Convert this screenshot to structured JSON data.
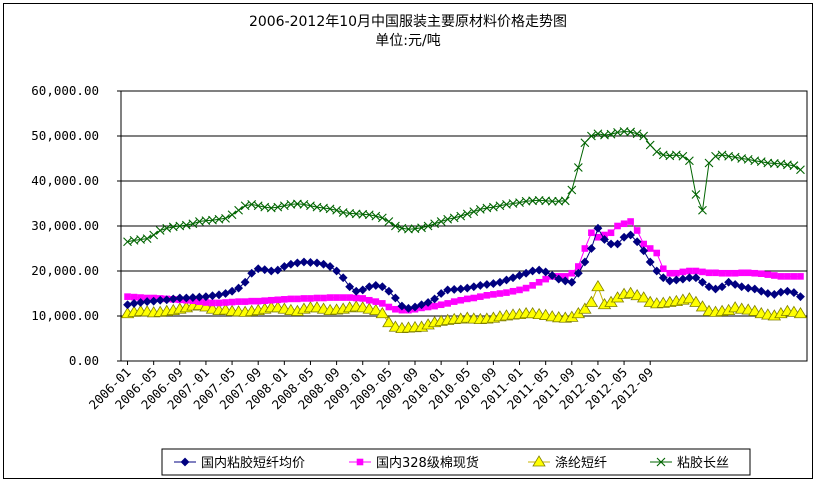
{
  "chart_data": {
    "type": "line",
    "title": "2006-2012年10月中国服装主要原材料价格走势图",
    "subtitle": "单位:元/吨",
    "ylim": [
      0,
      60000
    ],
    "yticks": [
      "0.00",
      "10,000.00",
      "20,000.00",
      "30,000.00",
      "40,000.00",
      "50,000.00",
      "60,000.00"
    ],
    "x_tick_labels": [
      "2006-01",
      "2006-05",
      "2006-09",
      "2007-01",
      "2007-05",
      "2007-09",
      "2008-01",
      "2008-05",
      "2008-09",
      "2009-01",
      "2009-05",
      "2009-09",
      "2010-01",
      "2010-05",
      "2010-09",
      "2011-01",
      "2011-05",
      "2011-09",
      "2012-01",
      "2012-05",
      "2012-09"
    ],
    "x_start": "2006-01",
    "x_end": "2012-10",
    "grid": "horizontal",
    "legend_position": "bottom",
    "series": [
      {
        "name": "国内粘胶短纤均价",
        "color": "#000080",
        "marker": "diamond",
        "values": [
          12500,
          12800,
          13000,
          13200,
          13300,
          13500,
          13600,
          13800,
          14000,
          14000,
          14100,
          14200,
          14300,
          14500,
          14700,
          15000,
          15500,
          16200,
          17500,
          19500,
          20500,
          20300,
          20000,
          20200,
          21000,
          21500,
          21800,
          22000,
          21900,
          21800,
          21500,
          21000,
          20000,
          18500,
          16500,
          15500,
          15800,
          16500,
          16800,
          16500,
          15500,
          14000,
          12200,
          11700,
          12000,
          12500,
          13000,
          13800,
          15000,
          15800,
          15900,
          16000,
          16200,
          16500,
          16800,
          17000,
          17200,
          17500,
          18000,
          18500,
          19000,
          19500,
          20000,
          20200,
          19800,
          19000,
          18200,
          17800,
          17500,
          19500,
          22000,
          25000,
          29500,
          27000,
          26000,
          26000,
          27500,
          28000,
          26500,
          24500,
          22000,
          20000,
          18500,
          17800,
          18000,
          18200,
          18500,
          18500,
          17500,
          16500,
          16000,
          16500,
          17500,
          17000,
          16500,
          16200,
          16000,
          15500,
          15000,
          14800,
          15300,
          15500,
          15200,
          14300
        ]
      },
      {
        "name": "国内328级棉现货",
        "color": "#FF00FF",
        "marker": "square",
        "values": [
          14300,
          14200,
          14100,
          14000,
          14000,
          13900,
          13800,
          13700,
          13600,
          13500,
          13400,
          13200,
          13000,
          12900,
          12900,
          13000,
          13100,
          13200,
          13200,
          13300,
          13300,
          13400,
          13500,
          13600,
          13700,
          13800,
          13800,
          13900,
          13900,
          14000,
          14000,
          14100,
          14100,
          14100,
          14100,
          14000,
          13900,
          13500,
          13200,
          12800,
          12000,
          11500,
          11300,
          11300,
          11500,
          11800,
          12000,
          12200,
          12500,
          12800,
          13200,
          13500,
          13800,
          14000,
          14300,
          14600,
          14800,
          15000,
          15200,
          15500,
          15800,
          16200,
          16800,
          17500,
          18200,
          18800,
          18800,
          18800,
          19500,
          21000,
          25000,
          28500,
          27500,
          28000,
          28500,
          30000,
          30500,
          31000,
          29000,
          26000,
          25000,
          24000,
          20500,
          19500,
          19500,
          19800,
          20000,
          20000,
          19800,
          19600,
          19600,
          19500,
          19500,
          19500,
          19600,
          19600,
          19500,
          19400,
          19200,
          19000,
          18800,
          18800,
          18800,
          18800
        ]
      },
      {
        "name": "涤纶短纤",
        "color": "#FFFF00",
        "marker": "triangle",
        "values": [
          10500,
          10800,
          11000,
          10900,
          10700,
          10800,
          11000,
          11200,
          11500,
          11800,
          12200,
          12300,
          12000,
          11500,
          11200,
          11300,
          11000,
          10900,
          10800,
          11000,
          11200,
          11500,
          11800,
          11800,
          11500,
          11200,
          11000,
          11500,
          11800,
          11800,
          11500,
          11200,
          11300,
          11500,
          11800,
          12000,
          11800,
          11500,
          11200,
          10500,
          8500,
          7500,
          7200,
          7300,
          7400,
          7500,
          8000,
          8500,
          8800,
          9000,
          9200,
          9300,
          9500,
          9300,
          9200,
          9300,
          9500,
          9800,
          10000,
          10200,
          10300,
          10500,
          10500,
          10300,
          10100,
          9800,
          9600,
          9500,
          9700,
          10500,
          11500,
          13000,
          16500,
          12500,
          13000,
          14000,
          14800,
          15000,
          14500,
          14000,
          13000,
          12700,
          12800,
          13000,
          13200,
          13500,
          13800,
          13000,
          12000,
          11000,
          10800,
          11000,
          11200,
          11800,
          11500,
          11300,
          11000,
          10500,
          10200,
          10000,
          10500,
          11000,
          10800,
          10500
        ]
      },
      {
        "name": "粘胶长丝",
        "color": "#006400",
        "marker": "x",
        "values": [
          26500,
          26800,
          27000,
          27200,
          28000,
          29000,
          29500,
          29800,
          30000,
          30200,
          30500,
          31000,
          31200,
          31300,
          31500,
          31700,
          32500,
          33500,
          34500,
          34800,
          34500,
          34200,
          34000,
          34200,
          34500,
          34800,
          34900,
          34800,
          34500,
          34200,
          34000,
          33800,
          33500,
          33000,
          32800,
          32700,
          32600,
          32500,
          32200,
          31800,
          31000,
          30000,
          29500,
          29300,
          29400,
          29600,
          30000,
          30500,
          31000,
          31500,
          31800,
          32200,
          32700,
          33200,
          33700,
          34000,
          34200,
          34500,
          34800,
          35000,
          35200,
          35500,
          35600,
          35700,
          35600,
          35500,
          35500,
          35600,
          38000,
          43000,
          48500,
          50000,
          50500,
          50200,
          50400,
          50800,
          51000,
          50900,
          50500,
          50000,
          48000,
          46500,
          45800,
          45600,
          45800,
          45500,
          44500,
          37000,
          33500,
          44000,
          45500,
          45800,
          45500,
          45300,
          45000,
          44800,
          44500,
          44300,
          44000,
          43900,
          43800,
          43600,
          43400,
          42500
        ]
      }
    ]
  }
}
